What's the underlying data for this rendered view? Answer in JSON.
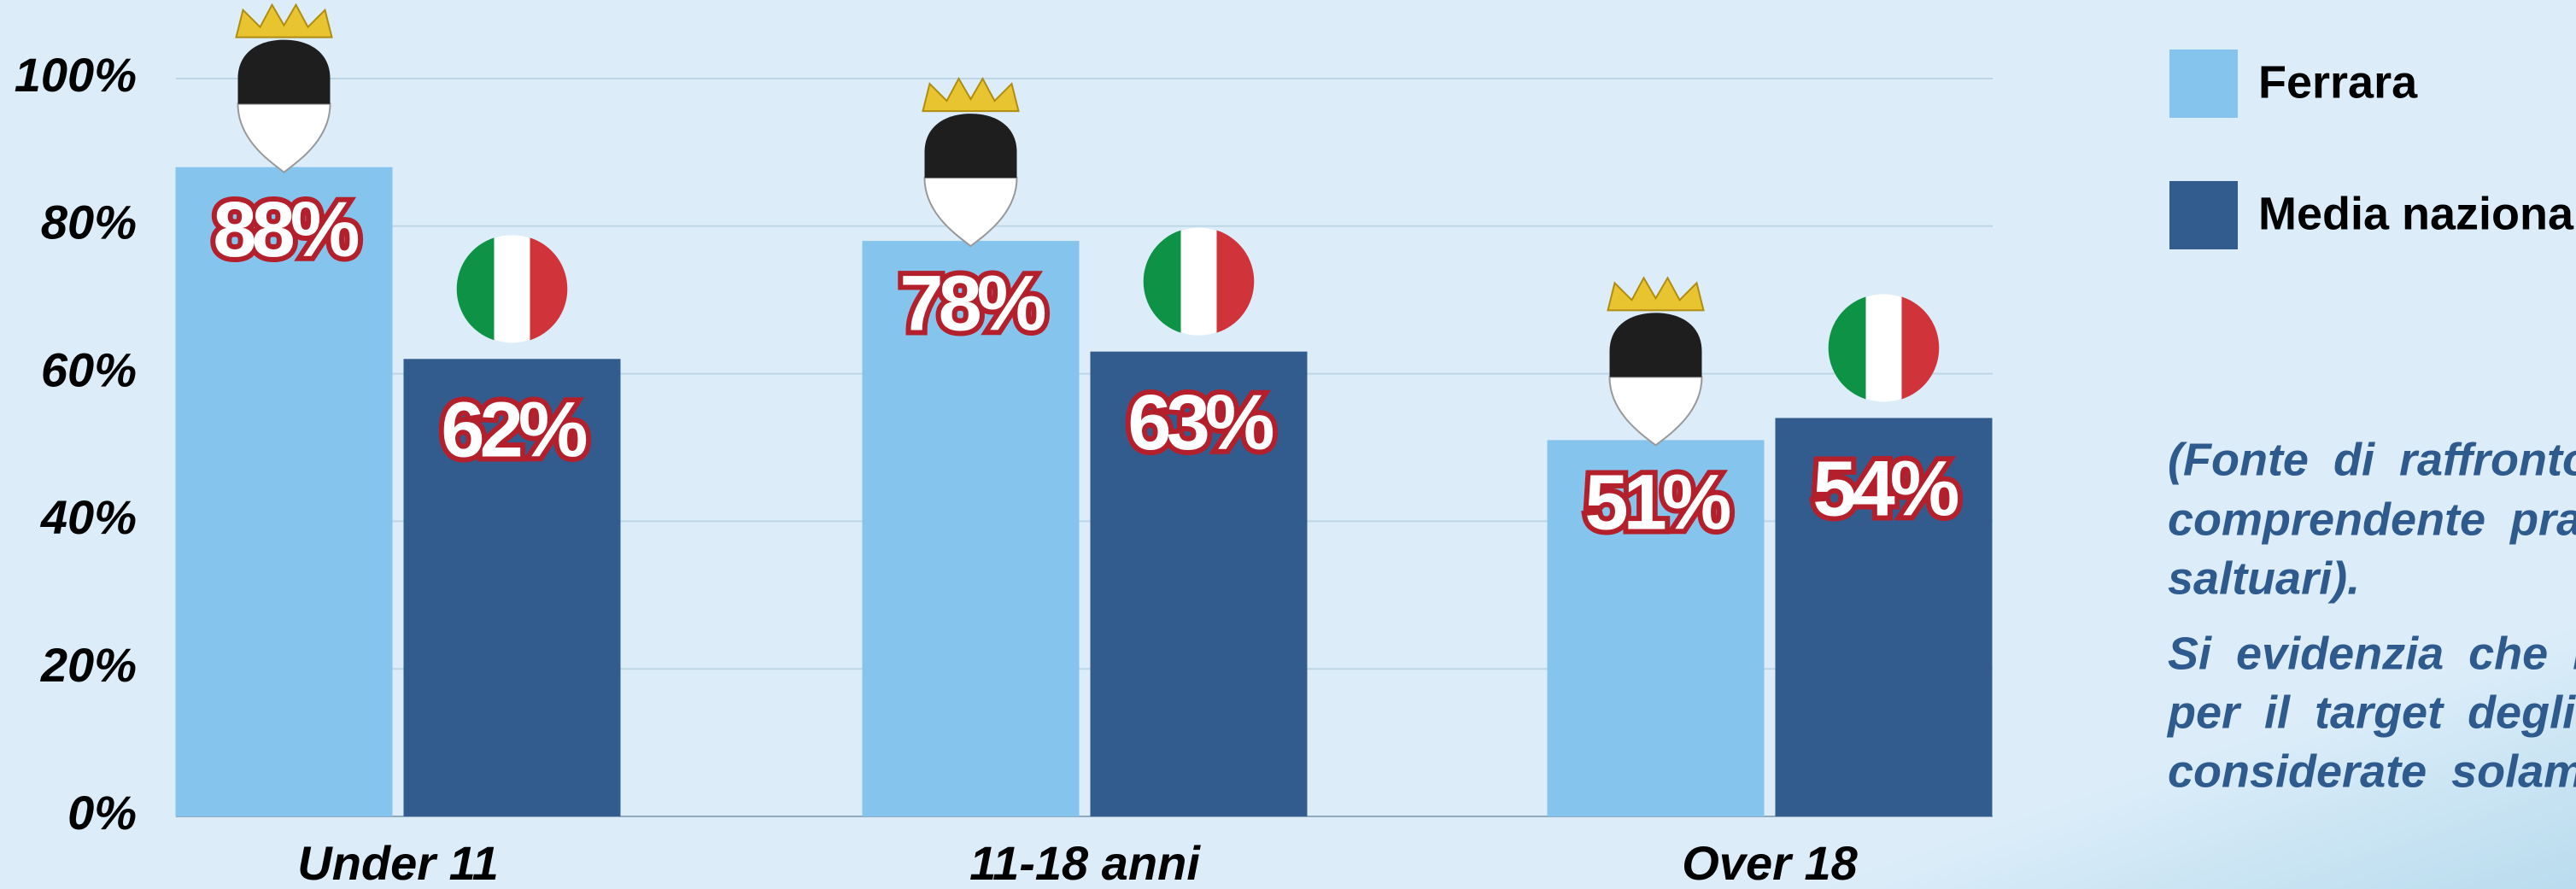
{
  "chart_data": {
    "type": "bar",
    "categories": [
      "Under 11",
      "11-18 anni",
      "Over 18"
    ],
    "series": [
      {
        "name": "Ferrara",
        "color": "#85c4ec",
        "values": [
          88,
          78,
          51
        ],
        "value_labels": [
          "88%",
          "78%",
          "51%"
        ]
      },
      {
        "name": "Media nazionale",
        "color": "#335c8e",
        "values": [
          62,
          63,
          54
        ],
        "value_labels": [
          "62%",
          "63%",
          "54%"
        ]
      }
    ],
    "ylim": [
      0,
      100
    ],
    "yticks": [
      {
        "value": 0,
        "label": "0%"
      },
      {
        "value": 20,
        "label": "20%"
      },
      {
        "value": 40,
        "label": "40%"
      },
      {
        "value": 60,
        "label": "60%"
      },
      {
        "value": 80,
        "label": "80%"
      },
      {
        "value": 100,
        "label": "100%"
      }
    ],
    "grid": true,
    "legend": "top-right",
    "note_lines": [
      "(Fonte di raffronto:",
      "comprendente pratic",
      "saltuari).",
      "Si evidenzia che nel",
      "per il target degli o",
      "considerate solamen"
    ]
  }
}
